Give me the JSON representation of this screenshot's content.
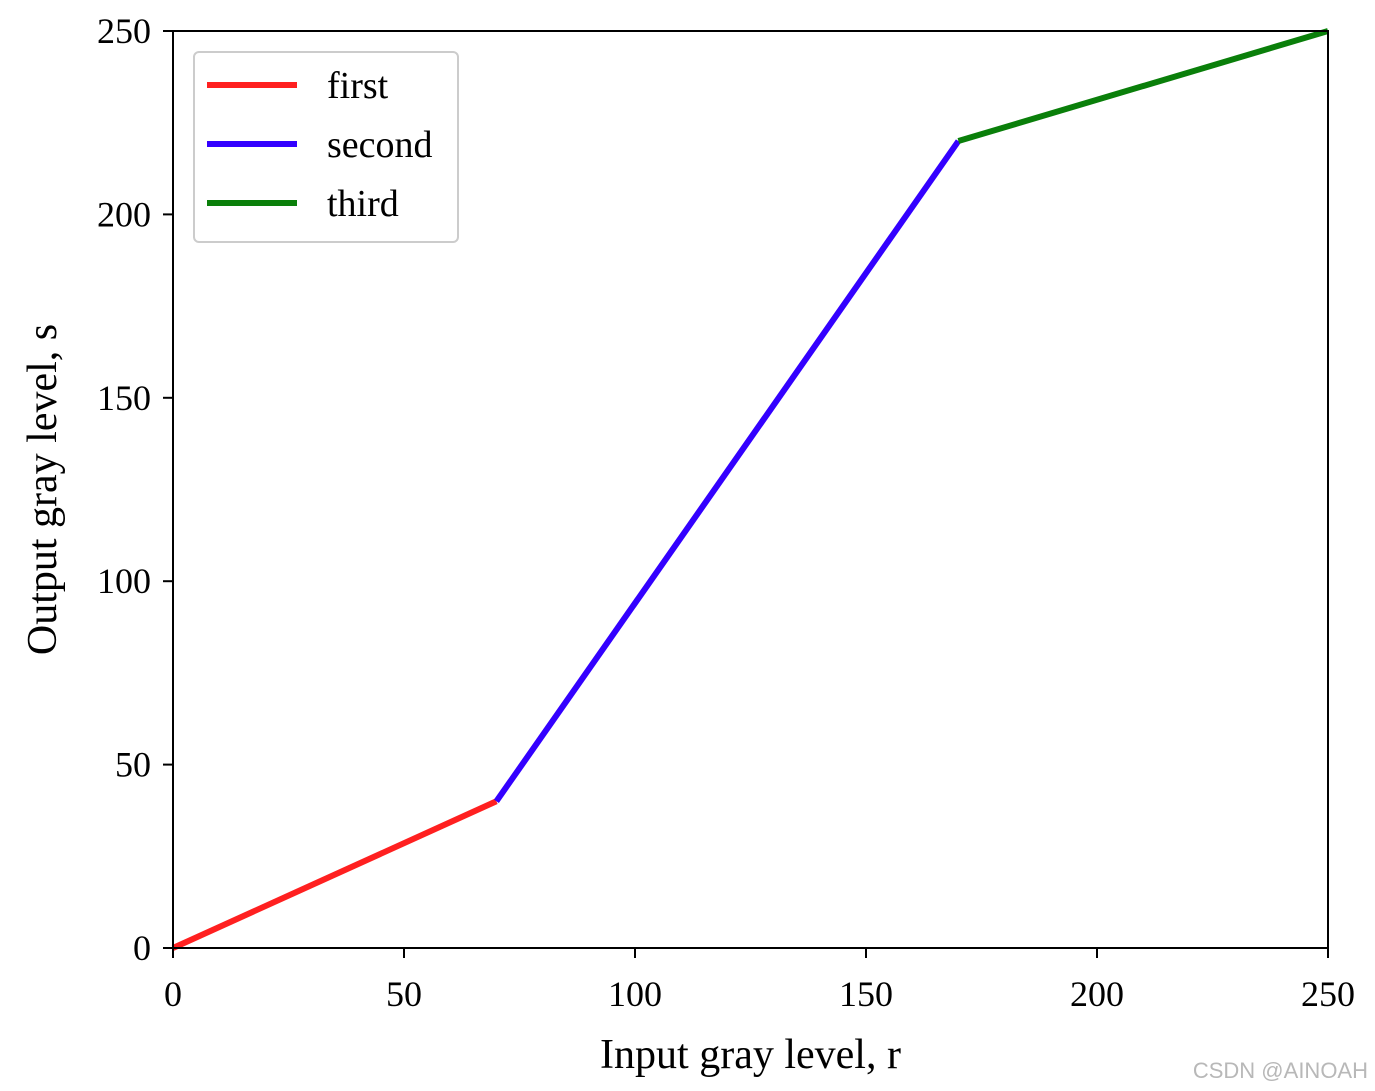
{
  "chart_data": {
    "type": "line",
    "xlabel": "Input gray level, r",
    "ylabel": "Output gray level, s",
    "xlim": [
      0,
      250
    ],
    "ylim": [
      0,
      250
    ],
    "xticks": [
      0,
      50,
      100,
      150,
      200,
      250
    ],
    "yticks": [
      0,
      50,
      100,
      150,
      200,
      250
    ],
    "grid": false,
    "legend_position": "top-left",
    "series": [
      {
        "name": "first",
        "color": "#ff2020",
        "x": [
          0,
          70
        ],
        "y": [
          0,
          40
        ]
      },
      {
        "name": "second",
        "color": "#3300ff",
        "x": [
          70,
          170
        ],
        "y": [
          40,
          220
        ]
      },
      {
        "name": "third",
        "color": "#0a7f0a",
        "x": [
          170,
          250
        ],
        "y": [
          220,
          250
        ]
      }
    ]
  },
  "watermark": "CSDN @AINOAH"
}
